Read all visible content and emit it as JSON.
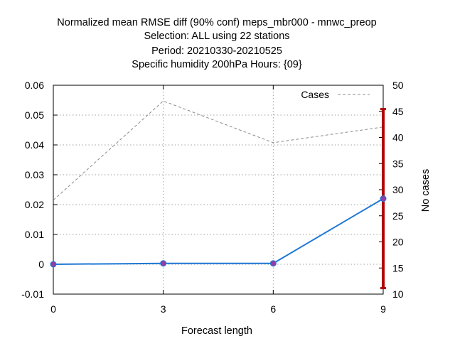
{
  "titles": [
    "Normalized mean RMSE diff (90% conf) meps_mbr000 - mnwc_preop",
    "Selection: ALL using     22 stations",
    "Period: 20210330-20210525",
    "Specific humidity 200hPa   Hours: {09}"
  ],
  "chart_data": {
    "type": "line",
    "xlabel": "Forecast length",
    "ylabel": "",
    "y2label": "No cases",
    "x": [
      0,
      3,
      6,
      9
    ],
    "xlim": [
      0,
      9
    ],
    "ylim": [
      -0.01,
      0.06
    ],
    "y2lim": [
      10,
      50
    ],
    "xticks": [
      "0",
      "3",
      "6",
      "9"
    ],
    "yticks": [
      "-0.01",
      "0",
      "0.01",
      "0.02",
      "0.03",
      "0.04",
      "0.05",
      "0.06"
    ],
    "y2ticks": [
      "10",
      "15",
      "20",
      "25",
      "30",
      "35",
      "40",
      "45",
      "50"
    ],
    "grid": true,
    "legend": "top-right",
    "series": [
      {
        "name": "",
        "values": [
          0.0,
          0.0003,
          0.0003,
          0.022
        ],
        "color": "#1f77d4",
        "marker_color": "#8f3fa6",
        "axis": "left"
      },
      {
        "name": "Cases",
        "values": [
          28,
          47,
          39,
          42
        ],
        "color": "#8a8a8a",
        "dash": true,
        "axis": "right"
      }
    ],
    "error_bars": [
      {
        "x": 9,
        "low": -0.008,
        "high": 0.052,
        "color": "#b30000"
      }
    ]
  }
}
